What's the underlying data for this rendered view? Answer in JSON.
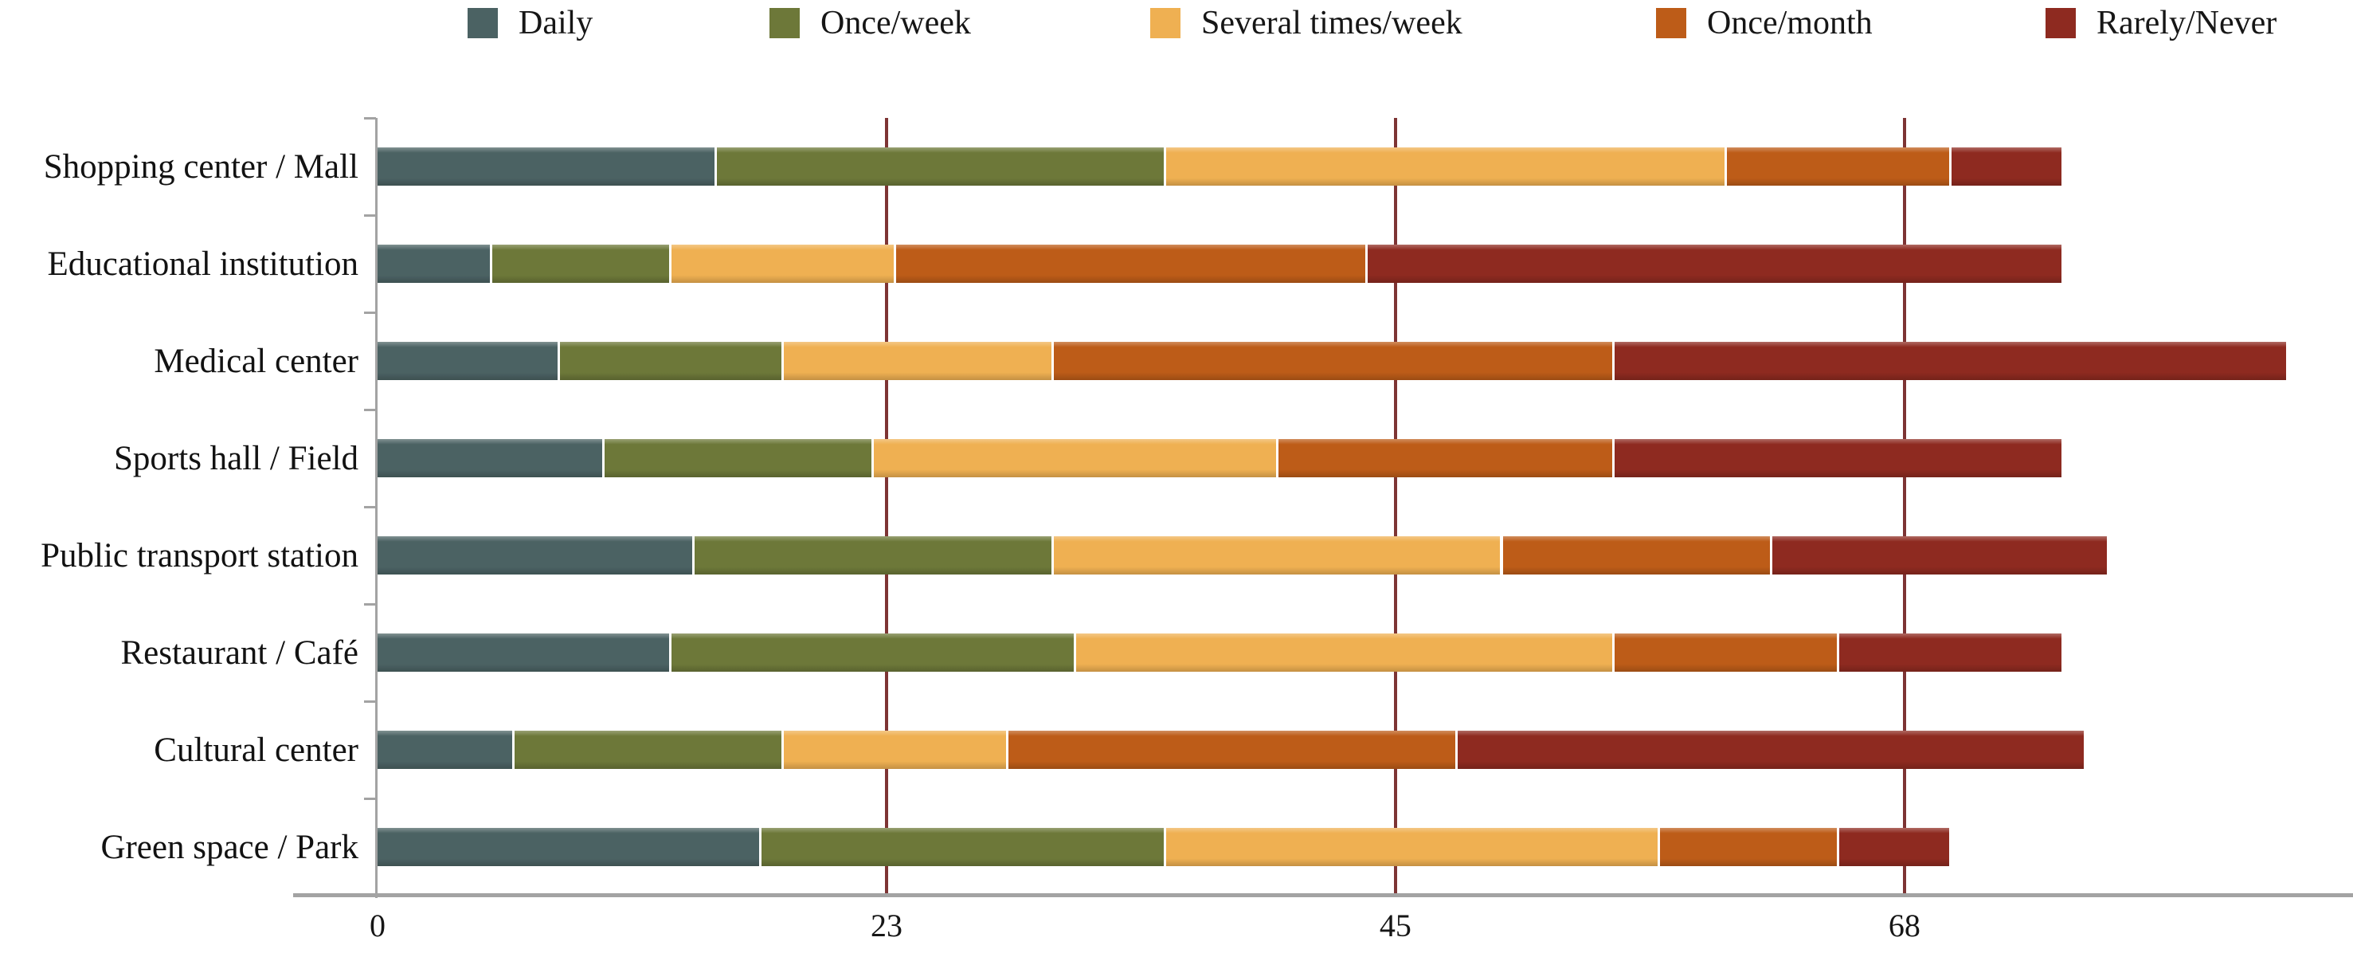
{
  "background": "#ffffff",
  "chart_data": {
    "type": "bar",
    "orientation": "horizontal",
    "stacked": true,
    "title": "",
    "xlabel": "",
    "ylabel": "",
    "grid": "vertical",
    "legend_position": "top",
    "categories": [
      "Shopping center / Mall",
      "Educational institution",
      "Medical center",
      "Sports hall / Field",
      "Public transport station",
      "Restaurant / Café",
      "Cultural center",
      "Green space / Park"
    ],
    "series": [
      {
        "name": "Daily",
        "color": "#4b6263",
        "values": [
          15,
          5,
          8,
          10,
          14,
          13,
          6,
          17
        ]
      },
      {
        "name": "Once/week",
        "color": "#6d7839",
        "values": [
          20,
          8,
          10,
          12,
          16,
          18,
          12,
          18
        ]
      },
      {
        "name": "Several times/week",
        "color": "#efb052",
        "values": [
          25,
          10,
          12,
          18,
          20,
          24,
          10,
          22
        ]
      },
      {
        "name": "Once/month",
        "color": "#bd5c18",
        "values": [
          10,
          21,
          25,
          15,
          12,
          10,
          20,
          8
        ]
      },
      {
        "name": "Rarely/Never",
        "color": "#8e2a20",
        "values": [
          5,
          31,
          30,
          20,
          15,
          10,
          28,
          5
        ]
      }
    ],
    "totals": [
      75,
      75,
      85,
      75,
      77,
      75,
      76,
      70
    ],
    "x_axis": {
      "min": 0,
      "max": 88,
      "ticks": [
        {
          "label": "0",
          "value": 0
        },
        {
          "label": "23",
          "value": 22.667
        },
        {
          "label": "45",
          "value": 45.333
        },
        {
          "label": "68",
          "value": 68
        }
      ],
      "gridline_color": "#7d3434",
      "axis_color": "#a3a3a3"
    }
  }
}
